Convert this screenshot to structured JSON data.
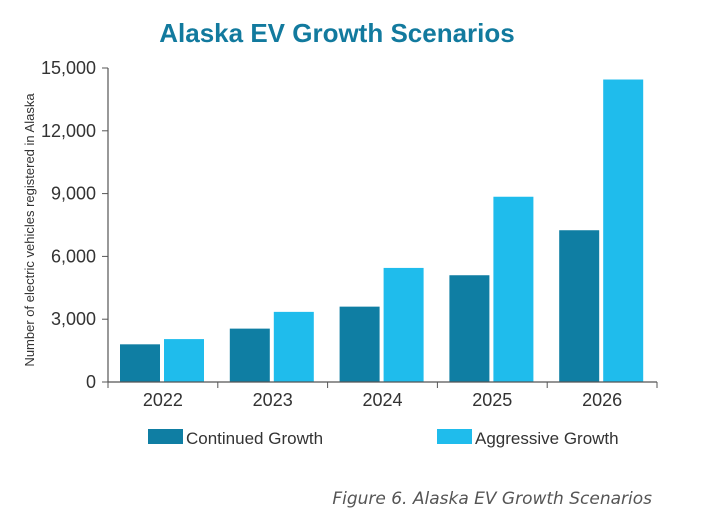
{
  "chart_data": {
    "type": "bar",
    "title": "Alaska EV Growth Scenarios",
    "xlabel": "",
    "ylabel": "Number of electric vehicles registered in Alaska",
    "categories": [
      "2022",
      "2023",
      "2024",
      "2025",
      "2026"
    ],
    "series": [
      {
        "name": "Continued Growth",
        "color": "#0f7ea3",
        "values": [
          1800,
          2550,
          3600,
          5100,
          7250
        ]
      },
      {
        "name": "Aggressive Growth",
        "color": "#1fbcec",
        "values": [
          2050,
          3350,
          5450,
          8850,
          14450
        ]
      }
    ],
    "ylim": [
      0,
      15000
    ],
    "yticks": [
      0,
      3000,
      6000,
      9000,
      12000,
      15000
    ],
    "ytick_labels": [
      "0",
      "3,000",
      "6,000",
      "9,000",
      "12,000",
      "15,000"
    ],
    "grid": false,
    "legend_position": "bottom",
    "title_color": "#127a9e",
    "axis_color": "#555555"
  },
  "caption": "Figure 6. Alaska EV Growth Scenarios"
}
